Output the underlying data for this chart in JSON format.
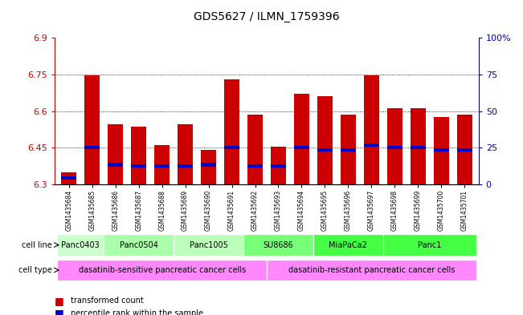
{
  "title": "GDS5627 / ILMN_1759396",
  "samples": [
    "GSM1435684",
    "GSM1435685",
    "GSM1435686",
    "GSM1435687",
    "GSM1435688",
    "GSM1435689",
    "GSM1435690",
    "GSM1435691",
    "GSM1435692",
    "GSM1435693",
    "GSM1435694",
    "GSM1435695",
    "GSM1435696",
    "GSM1435697",
    "GSM1435698",
    "GSM1435699",
    "GSM1435700",
    "GSM1435701"
  ],
  "bar_values": [
    6.35,
    6.745,
    6.545,
    6.535,
    6.46,
    6.545,
    6.44,
    6.73,
    6.585,
    6.455,
    6.67,
    6.66,
    6.585,
    6.745,
    6.61,
    6.61,
    6.575,
    6.585
  ],
  "blue_positions": [
    6.325,
    6.45,
    6.38,
    6.375,
    6.375,
    6.375,
    6.38,
    6.45,
    6.375,
    6.375,
    6.45,
    6.44,
    6.44,
    6.46,
    6.45,
    6.45,
    6.44,
    6.44
  ],
  "y_min": 6.3,
  "y_max": 6.9,
  "y_ticks": [
    6.3,
    6.45,
    6.6,
    6.75,
    6.9
  ],
  "y_right_ticks": [
    0,
    25,
    50,
    75,
    100
  ],
  "cell_line_groups": [
    {
      "label": "Panc0403",
      "cols": [
        0,
        1
      ],
      "color": "#ccffcc"
    },
    {
      "label": "Panc0504",
      "cols": [
        2,
        3,
        4
      ],
      "color": "#aaffaa"
    },
    {
      "label": "Panc1005",
      "cols": [
        5,
        6,
        7
      ],
      "color": "#bbffbb"
    },
    {
      "label": "SU8686",
      "cols": [
        8,
        9,
        10
      ],
      "color": "#77ff77"
    },
    {
      "label": "MiaPaCa2",
      "cols": [
        11,
        12,
        13
      ],
      "color": "#44ff44"
    },
    {
      "label": "Panc1",
      "cols": [
        14,
        15,
        16,
        17
      ],
      "color": "#44ff44"
    }
  ],
  "cell_type_groups": [
    {
      "label": "dasatinib-sensitive pancreatic cancer cells",
      "cols": [
        0,
        1,
        2,
        3,
        4,
        5,
        6,
        7,
        8
      ],
      "color": "#ff88ff"
    },
    {
      "label": "dasatinib-resistant pancreatic cancer cells",
      "cols": [
        9,
        10,
        11,
        12,
        13,
        14,
        15,
        16,
        17
      ],
      "color": "#ff88ff"
    }
  ],
  "bar_color": "#cc0000",
  "blue_color": "#0000cc",
  "bg_color": "#ffffff",
  "tick_color_left": "#cc0000",
  "tick_color_right": "#0000bb",
  "chart_bg": "#ffffff"
}
